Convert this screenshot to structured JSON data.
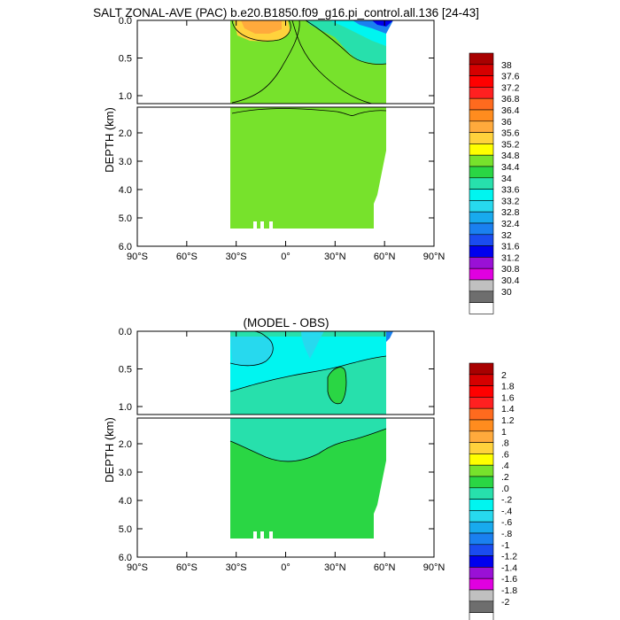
{
  "figure": {
    "title": "SALT ZONAL-AVE (PAC) b.e20.B1850.f09_g16.pi_control.all.136 [24-43]",
    "ylabel": "DEPTH (km)"
  },
  "chart_data": [
    {
      "type": "heatmap",
      "title": "SALT ZONAL-AVE (PAC) b.e20.B1850.f09_g16.pi_control.all.136 [24-43]",
      "xlabel": "",
      "ylabel": "DEPTH (km)",
      "x_ticks": [
        "90°S",
        "60°S",
        "30°S",
        "0°",
        "30°N",
        "60°N",
        "90°N"
      ],
      "y_ticks_upper": [
        "0.0",
        "0.5",
        "1.0"
      ],
      "y_ticks_lower": [
        "2.0",
        "3.0",
        "4.0",
        "5.0",
        "6.0"
      ],
      "xlim": [
        -90,
        90
      ],
      "ylim": [
        6.0,
        0.0
      ],
      "colorbar_labels": [
        "38",
        "37.6",
        "37.2",
        "36.8",
        "36.4",
        "36",
        "35.6",
        "35.2",
        "34.8",
        "34.4",
        "34",
        "33.6",
        "33.2",
        "32.8",
        "32.4",
        "32",
        "31.6",
        "31.2",
        "30.8",
        "30.4",
        "30"
      ],
      "colorbar_colors": [
        "#a80000",
        "#d60000",
        "#ff0000",
        "#ff2020",
        "#ff6a1e",
        "#ff8c1e",
        "#ffaa3c",
        "#ffd23c",
        "#ffff00",
        "#77e22c",
        "#2ad644",
        "#27e0ac",
        "#00f5f0",
        "#27d9ee",
        "#18aaee",
        "#1a80f0",
        "#1a4cf0",
        "#0000ee",
        "#9a10d6",
        "#e000e0",
        "#c0c0c0",
        "#6e6e6e",
        "#ffffff"
      ],
      "dominant_value": 34.4,
      "domain_lat": [
        -33,
        62
      ],
      "domain_depth_km": [
        0,
        5.35
      ]
    },
    {
      "type": "heatmap",
      "title": "(MODEL - OBS)",
      "xlabel": "",
      "ylabel": "DEPTH (km)",
      "x_ticks": [
        "90°S",
        "60°S",
        "30°S",
        "0°",
        "30°N",
        "60°N",
        "90°N"
      ],
      "y_ticks_upper": [
        "0.0",
        "0.5",
        "1.0"
      ],
      "y_ticks_lower": [
        "2.0",
        "3.0",
        "4.0",
        "5.0",
        "6.0"
      ],
      "xlim": [
        -90,
        90
      ],
      "ylim": [
        6.0,
        0.0
      ],
      "colorbar_labels": [
        "2",
        "1.8",
        "1.6",
        "1.4",
        "1.2",
        "1",
        ".8",
        ".6",
        ".4",
        ".2",
        ".0",
        "-.2",
        "-.4",
        "-.6",
        "-.8",
        "-1",
        "-1.2",
        "-1.4",
        "-1.6",
        "-1.8",
        "-2"
      ],
      "colorbar_colors": [
        "#a80000",
        "#d60000",
        "#ff0000",
        "#ff2020",
        "#ff6a1e",
        "#ff8c1e",
        "#ffaa3c",
        "#ffd23c",
        "#ffff00",
        "#77e22c",
        "#2ad644",
        "#27e0ac",
        "#00f5f0",
        "#27d9ee",
        "#18aaee",
        "#1a80f0",
        "#1a4cf0",
        "#0000ee",
        "#9a10d6",
        "#e000e0",
        "#c0c0c0",
        "#6e6e6e",
        "#ffffff"
      ],
      "dominant_value": 0.1,
      "domain_lat": [
        -33,
        62
      ],
      "domain_depth_km": [
        0,
        5.35
      ]
    }
  ]
}
